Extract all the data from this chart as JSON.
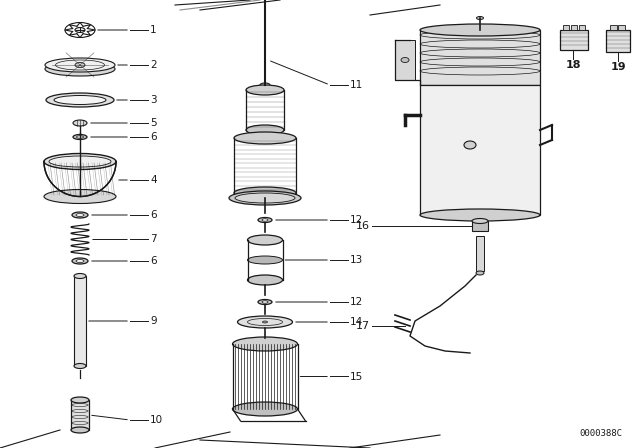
{
  "bg_color": "#ffffff",
  "line_color": "#1a1a1a",
  "diagram_id": "0000388C",
  "figsize": [
    6.4,
    4.48
  ],
  "dpi": 100
}
